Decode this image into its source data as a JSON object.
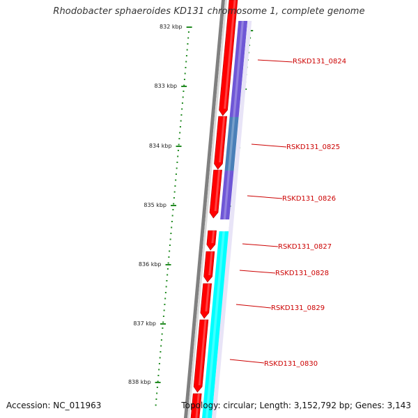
{
  "header": {
    "title": "Rhodobacter sphaeroides KD131 chromosome 1, complete genome"
  },
  "footer": {
    "accession": "Accession: NC_011963",
    "stats": "Topology: circular; Length: 3,152,792 bp; Genes: 3,143"
  },
  "colors": {
    "forward_cds": "#ff0000",
    "reverse_band_purple": "#6e56d6",
    "reverse_band_cyan": "#00ffff",
    "backbone": "#808080",
    "ticks": "#228b22",
    "label_line": "#cc0000"
  },
  "map": {
    "kbp_ticks": [
      "832 kbp",
      "833 kbp",
      "834 kbp",
      "835 kbp",
      "836 kbp",
      "837 kbp",
      "838 kbp"
    ],
    "genes": [
      {
        "label": "RSKD131_0824"
      },
      {
        "label": "RSKD131_0825"
      },
      {
        "label": "RSKD131_0826"
      },
      {
        "label": "RSKD131_0827"
      },
      {
        "label": "RSKD131_0828"
      },
      {
        "label": "RSKD131_0829"
      },
      {
        "label": "RSKD131_0830"
      }
    ]
  }
}
